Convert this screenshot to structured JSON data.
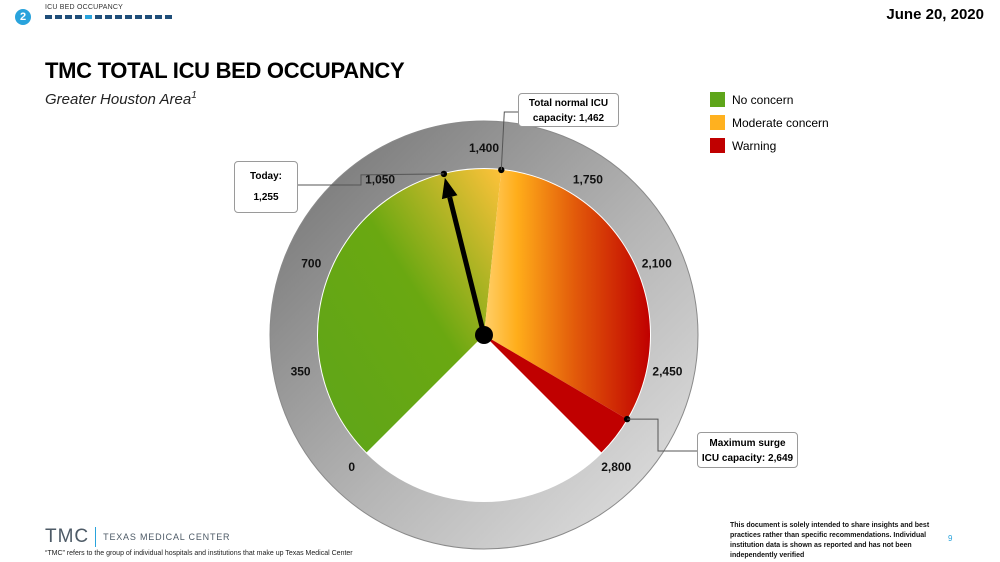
{
  "header": {
    "section_number": "2",
    "section_label": "ICU BED OCCUPANCY",
    "progress_segments": [
      1,
      1,
      1,
      1,
      0,
      1,
      1,
      1,
      1,
      1,
      1,
      1,
      1
    ],
    "date": "June 20, 2020"
  },
  "title": "TMC TOTAL ICU BED OCCUPANCY",
  "subtitle": "Greater Houston Area",
  "subtitle_footnote": "1",
  "legend": [
    {
      "label": "No concern",
      "color": "#5ea51a"
    },
    {
      "label": "Moderate concern",
      "color": "#ffb11f"
    },
    {
      "label": "Warning",
      "color": "#c00000"
    }
  ],
  "callouts": {
    "today_label": "Today:",
    "today_value": "1,255",
    "normal_line1": "Total normal ICU",
    "normal_line2": "capacity: 1,462",
    "surge_line1": "Maximum surge",
    "surge_line2": "ICU capacity: 2,649"
  },
  "chart_data": {
    "type": "gauge",
    "min": 0,
    "max": 2800,
    "sweep_degrees": 270,
    "ticks": [
      0,
      350,
      700,
      1050,
      1400,
      1750,
      2100,
      2450,
      2800
    ],
    "tick_labels": [
      "0",
      "350",
      "700",
      "1,050",
      "1,400",
      "1,750",
      "2,100",
      "2,450",
      "2,800"
    ],
    "bands": [
      {
        "name": "No concern",
        "from": 0,
        "to": 1462,
        "color_from": "#5ea51a",
        "color_to": "#ffcf5a"
      },
      {
        "name": "Warning",
        "from": 1462,
        "to": 2649,
        "color_from": "#ffb11f",
        "color_to": "#c00000"
      },
      {
        "name": "Warning",
        "from": 2649,
        "to": 2800,
        "color_from": "#c00000",
        "color_to": "#c00000"
      }
    ],
    "today": 1255,
    "normal_capacity": 1462,
    "max_surge_capacity": 2649
  },
  "footer": {
    "logo_mark": "TMC",
    "logo_text": "TEXAS MEDICAL CENTER",
    "note": "“TMC” refers to the group of individual hospitals and institutions that make up Texas Medical Center",
    "disclaimer": "This document is solely intended to share insights and best practices rather than specific recommendations. Individual institution data is shown as reported and has not been independently verified",
    "page_number": "9"
  }
}
